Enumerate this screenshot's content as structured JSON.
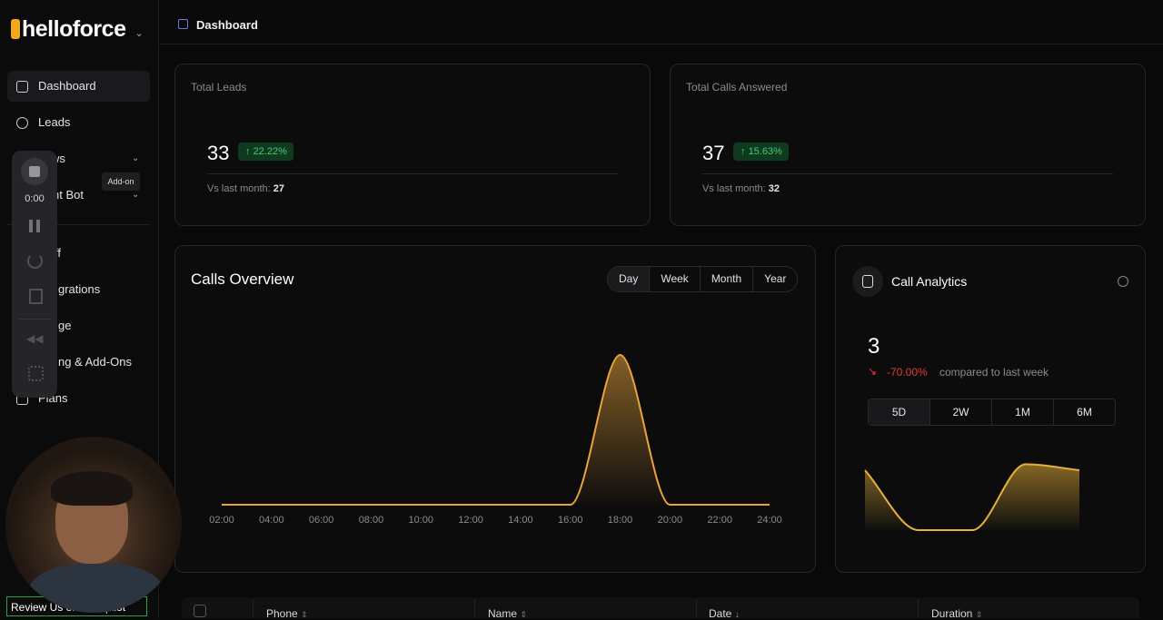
{
  "brand": "helloforce",
  "sidebar": {
    "nav": [
      "Dashboard",
      "Leads",
      "ws",
      "nt Bot",
      "ff",
      "grations",
      "ge",
      "ng & Add-Ons",
      "Plans"
    ]
  },
  "recorder": {
    "timer": "0:00",
    "tooltip": "Add-on"
  },
  "review_link": "Review Us on Trustpilot",
  "header": {
    "breadcrumb": "Dashboard"
  },
  "stats": [
    {
      "title": "Total Leads",
      "value": 33,
      "change": "22.22%",
      "compare_label": "Vs last month:",
      "compare_value": 27
    },
    {
      "title": "Total Calls Answered",
      "value": 37,
      "change": "15.63%",
      "compare_label": "Vs last month:",
      "compare_value": 32
    }
  ],
  "calls_overview": {
    "tabs": [
      "Day",
      "Week",
      "Month",
      "Year"
    ]
  },
  "call_analytics": {
    "total": 3,
    "change": "-70.00%",
    "change_note": "compared to last week",
    "tabs": [
      "5D",
      "2W",
      "1M",
      "6M"
    ]
  },
  "table": {
    "columns": [
      "Phone",
      "Name",
      "Date",
      "Duration"
    ]
  },
  "chart_data": [
    {
      "type": "line",
      "title": "Calls Overview",
      "categories": [
        "02:00",
        "04:00",
        "06:00",
        "08:00",
        "10:00",
        "12:00",
        "14:00",
        "16:00",
        "18:00",
        "20:00",
        "22:00",
        "24:00"
      ],
      "values": [
        0,
        0,
        0,
        0,
        0,
        0,
        0,
        0,
        3,
        0,
        0,
        0
      ],
      "ylim": [
        0,
        4
      ],
      "color": "#e8a33a",
      "area": true
    },
    {
      "type": "line",
      "title": "Call Analytics",
      "values": [
        2,
        0,
        0,
        2.2,
        2
      ],
      "ylim": [
        0,
        3
      ],
      "color": "#e8b23a",
      "area": true
    }
  ]
}
